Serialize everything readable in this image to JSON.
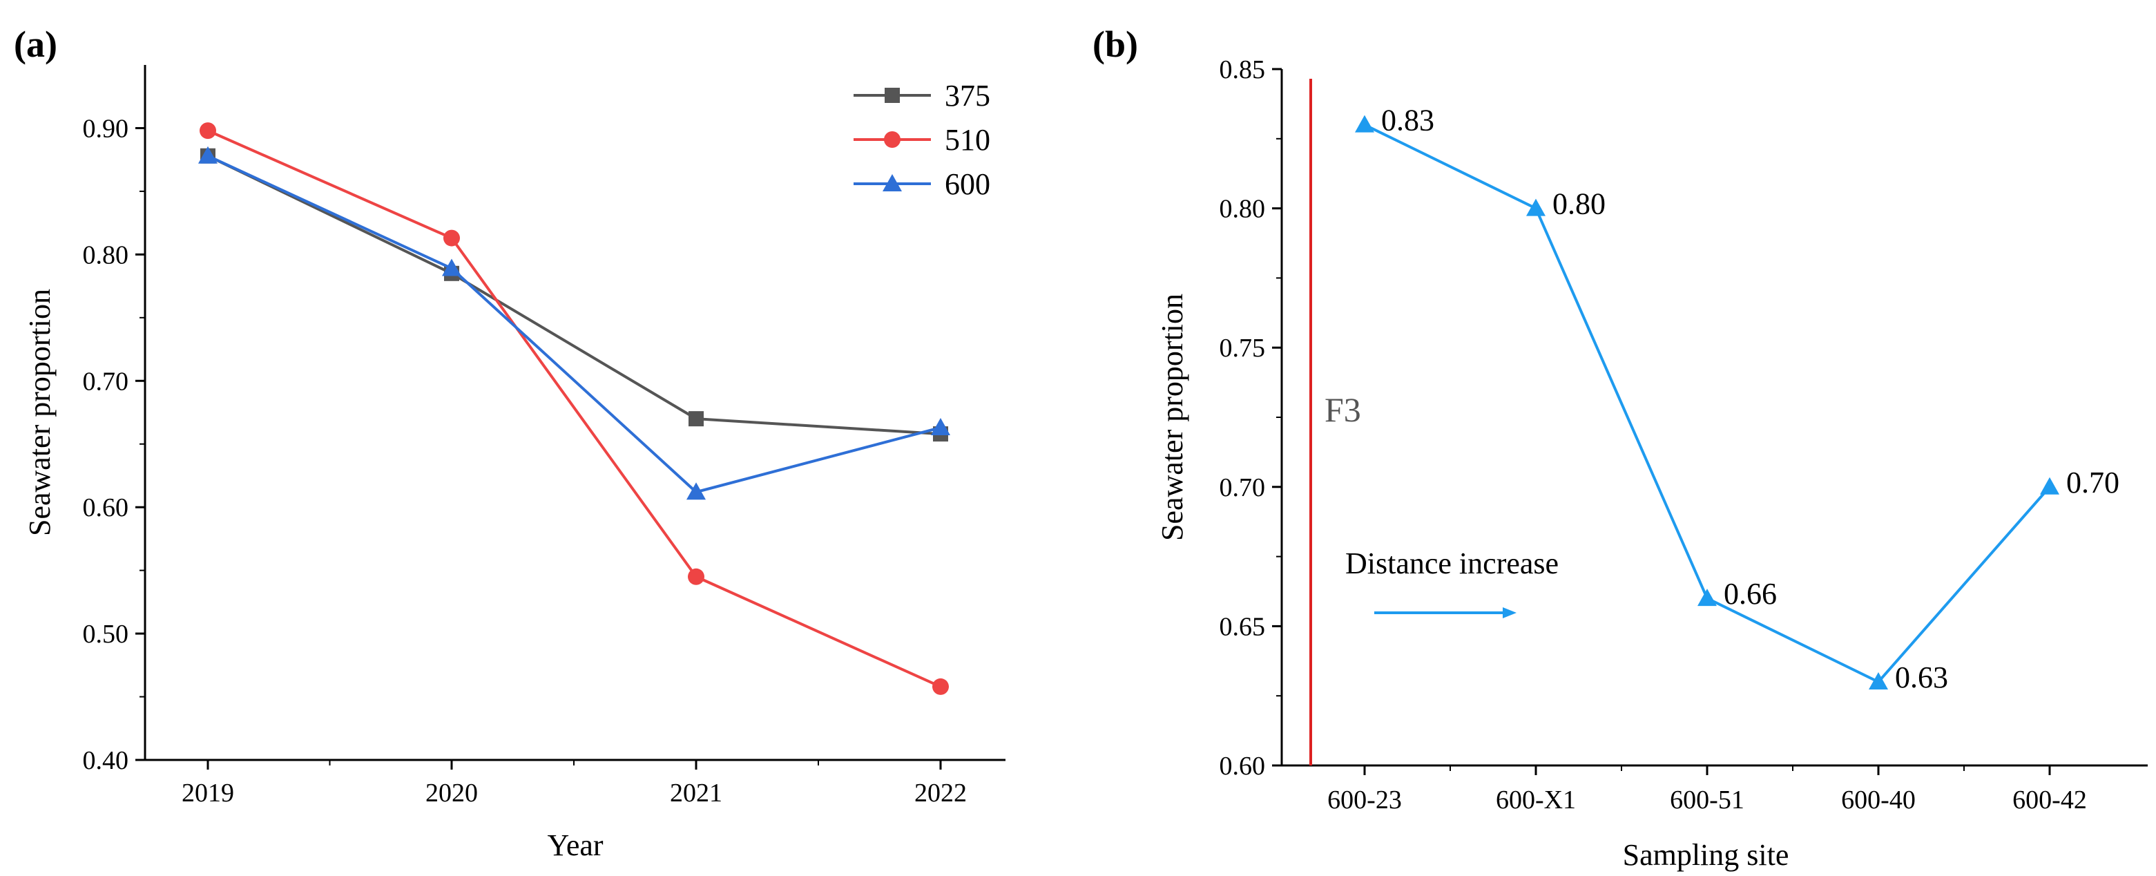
{
  "chart_data": [
    {
      "panel": "(a)",
      "type": "line",
      "title": "",
      "xlabel": "Year",
      "ylabel": "Seawater proportion",
      "categories": [
        "2019",
        "2020",
        "2021",
        "2022"
      ],
      "x": [
        2019,
        2020,
        2021,
        2022
      ],
      "ylim": [
        0.4,
        0.95
      ],
      "yticks": [
        "0.40",
        "0.50",
        "0.60",
        "0.70",
        "0.80",
        "0.90"
      ],
      "legend_position": "top-right",
      "series": [
        {
          "name": "375",
          "marker": "square",
          "color": "#555555",
          "values": [
            0.878,
            0.785,
            0.67,
            0.658
          ]
        },
        {
          "name": "510",
          "marker": "circle",
          "color": "#EE4444",
          "values": [
            0.898,
            0.813,
            0.545,
            0.458
          ]
        },
        {
          "name": "600",
          "marker": "triangle",
          "color": "#2E6FD6",
          "values": [
            0.878,
            0.789,
            0.612,
            0.663
          ]
        }
      ]
    },
    {
      "panel": "(b)",
      "type": "line",
      "title": "",
      "xlabel": "Sampling site",
      "ylabel": "Seawater proportion",
      "categories": [
        "600-23",
        "600-X1",
        "600-51",
        "600-40",
        "600-42"
      ],
      "ylim": [
        0.6,
        0.85
      ],
      "yticks": [
        "0.60",
        "0.65",
        "0.70",
        "0.75",
        "0.80",
        "0.85"
      ],
      "series": [
        {
          "name": "600",
          "marker": "triangle",
          "color": "#1E9BEF",
          "values": [
            0.83,
            0.8,
            0.66,
            0.63,
            0.7
          ],
          "labels": [
            "0.83",
            "0.80",
            "0.66",
            "0.63",
            "0.70"
          ]
        }
      ],
      "annotations": {
        "fault_label": "F3",
        "fault_color": "#DD2222",
        "arrow_text": "Distance increase",
        "arrow_color": "#1E9BEF"
      }
    }
  ]
}
